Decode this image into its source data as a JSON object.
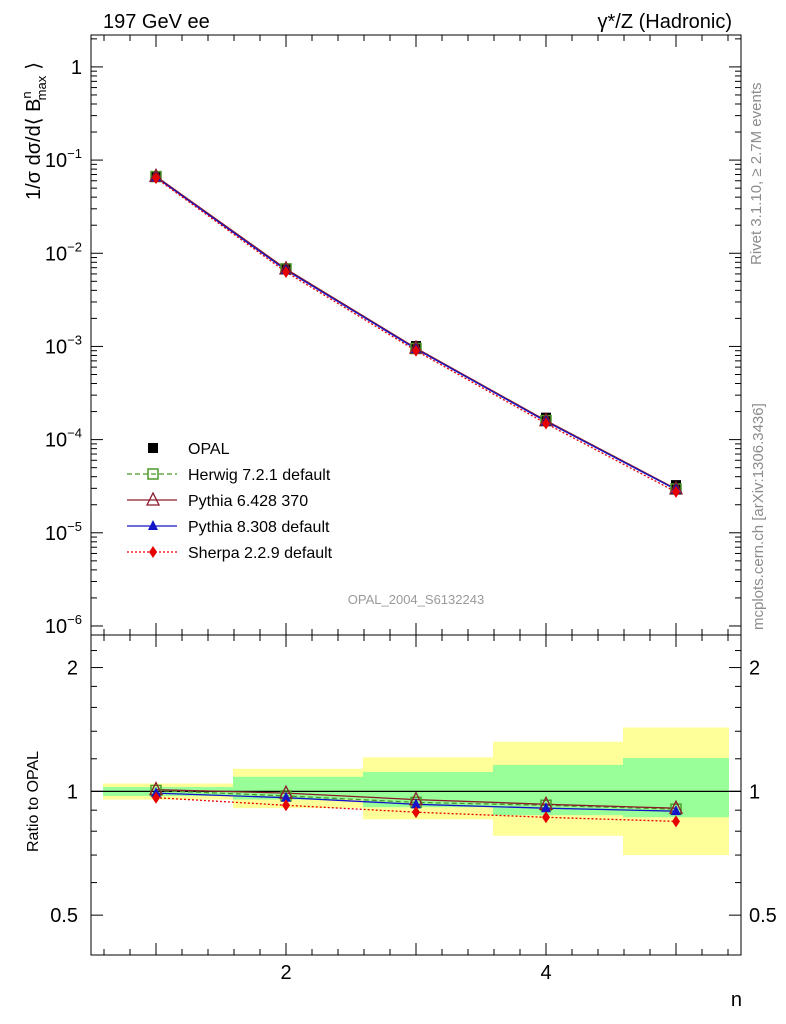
{
  "header": {
    "left_title": "197 GeV ee",
    "right_title": "γ*/Z (Hadronic)"
  },
  "side_labels": {
    "rivet": "Rivet 3.1.10, ≥ 2.7M events",
    "mcplots": "mcplots.cern.ch [arXiv:1306.3436]"
  },
  "watermark": "OPAL_2004_S6132243",
  "axes": {
    "xlabel": "n",
    "ylabel_main": "1/σ dσ/d⟨ B",
    "ylabel_sup": "n",
    "ylabel_sub": "max",
    "ylabel_close": "⟩",
    "ylabel_ratio": "Ratio to OPAL"
  },
  "main_ticks": [
    {
      "base": "1",
      "exp": ""
    },
    {
      "base": "10",
      "exp": "−1"
    },
    {
      "base": "10",
      "exp": "−2"
    },
    {
      "base": "10",
      "exp": "−3"
    },
    {
      "base": "10",
      "exp": "−4"
    },
    {
      "base": "10",
      "exp": "−5"
    },
    {
      "base": "10",
      "exp": "−6"
    }
  ],
  "ratio_ticks": [
    "2",
    "1",
    "0.5"
  ],
  "x_ticks": [
    "2",
    "4"
  ],
  "colors": {
    "opal": "#000000",
    "herwig": "#4a9a2a",
    "pythia6": "#8b1a2a",
    "pythia8": "#1414c8",
    "sherpa": "#e60000",
    "band_inner": "#99ff99",
    "band_outer": "#ffff99"
  },
  "chart_data": [
    {
      "type": "line",
      "title": "",
      "xlabel": "n",
      "ylabel": "1/σ dσ/d⟨ B^n_max ⟩",
      "yscale": "log",
      "xlim": [
        0.5,
        5.5
      ],
      "ylim": [
        8e-07,
        2.2
      ],
      "legend_position": "bottom-left",
      "x": [
        1,
        2,
        3,
        4,
        5
      ],
      "series": [
        {
          "name": "OPAL",
          "marker": "square",
          "values": [
            0.066,
            0.0068,
            0.00101,
            0.000172,
            3.25e-05
          ]
        },
        {
          "name": "Herwig 7.2.1 default",
          "marker": "open-square",
          "values": [
            0.0665,
            0.0068,
            0.00095,
            0.00016,
            2.95e-05
          ]
        },
        {
          "name": "Pythia 6.428 370",
          "marker": "open-triangle",
          "values": [
            0.067,
            0.0068,
            0.00096,
            0.00016,
            2.96e-05
          ]
        },
        {
          "name": "Pythia 8.308 default",
          "marker": "triangle",
          "values": [
            0.0655,
            0.0066,
            0.00094,
            0.000157,
            2.91e-05
          ]
        },
        {
          "name": "Sherpa 2.2.9 default",
          "marker": "diamond",
          "values": [
            0.064,
            0.0063,
            0.0009,
            0.000149,
            2.75e-05
          ]
        }
      ]
    },
    {
      "type": "line",
      "title": "",
      "xlabel": "n",
      "ylabel": "Ratio to OPAL",
      "yscale": "log",
      "xlim": [
        0.5,
        5.5
      ],
      "ylim": [
        0.4,
        2.4
      ],
      "bins": [
        [
          0.5,
          1.5
        ],
        [
          1.5,
          2.5
        ],
        [
          2.5,
          3.5
        ],
        [
          3.5,
          4.5
        ],
        [
          4.5,
          5.5
        ]
      ],
      "band_inner": [
        [
          0.975,
          1.025
        ],
        [
          0.955,
          1.085
        ],
        [
          0.915,
          1.115
        ],
        [
          0.875,
          1.16
        ],
        [
          0.865,
          1.205
        ]
      ],
      "band_outer": [
        [
          0.955,
          1.045
        ],
        [
          0.91,
          1.135
        ],
        [
          0.855,
          1.21
        ],
        [
          0.78,
          1.32
        ],
        [
          0.7,
          1.43
        ]
      ],
      "x": [
        1,
        2,
        3,
        4,
        5
      ],
      "series": [
        {
          "name": "Herwig 7.2.1 default",
          "values": [
            1.005,
            0.975,
            0.94,
            0.925,
            0.905
          ]
        },
        {
          "name": "Pythia 6.428 370",
          "values": [
            1.01,
            0.99,
            0.955,
            0.93,
            0.91
          ]
        },
        {
          "name": "Pythia 8.308 default",
          "values": [
            0.99,
            0.965,
            0.93,
            0.91,
            0.895
          ]
        },
        {
          "name": "Sherpa 2.2.9 default",
          "values": [
            0.965,
            0.925,
            0.89,
            0.865,
            0.845
          ]
        }
      ]
    }
  ]
}
